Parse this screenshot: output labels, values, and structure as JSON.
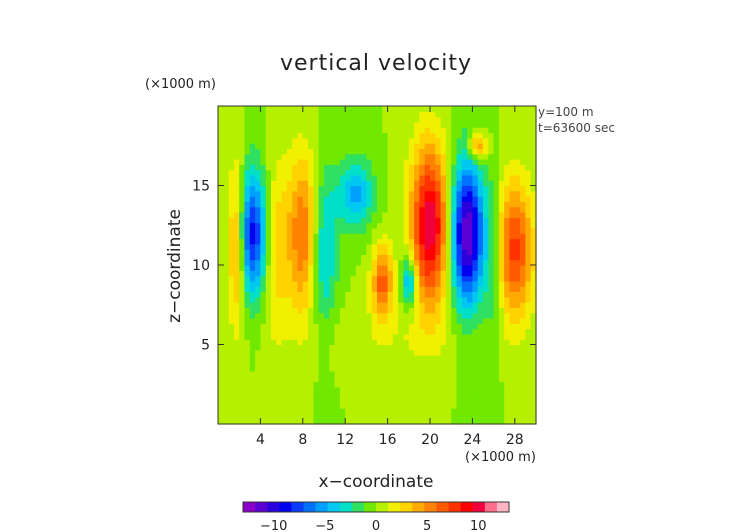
{
  "chart_data": {
    "type": "heatmap",
    "title": "vertical velocity",
    "xlabel": "x−coordinate",
    "ylabel": "z−coordinate",
    "x_units": "(×1000 m)",
    "y_units": "(×1000 m)",
    "annotations": [
      "y=100 m",
      "t=63600 sec"
    ],
    "xlim": [
      0,
      30
    ],
    "ylim": [
      0,
      20
    ],
    "xticks": [
      4,
      8,
      12,
      16,
      20,
      24,
      28
    ],
    "yticks": [
      5,
      10,
      15
    ],
    "colorbar": {
      "ticks": [
        -10,
        -5,
        0,
        5,
        10
      ],
      "tick_labels": [
        "−10",
        "−5",
        "0",
        "5",
        "10"
      ],
      "range": [
        -13,
        13
      ],
      "colors": [
        "#8a00c8",
        "#5a00d2",
        "#2a00dc",
        "#0000f0",
        "#0a3cff",
        "#0070ff",
        "#00a0ff",
        "#00c8f0",
        "#00e0c8",
        "#30e060",
        "#70e800",
        "#b4f000",
        "#f0f000",
        "#ffd200",
        "#ffaa00",
        "#ff8200",
        "#ff5a00",
        "#ff3200",
        "#ff0000",
        "#f0003c",
        "#ff6e8c",
        "#ffb4c3"
      ]
    },
    "features": [
      {
        "x": 3.2,
        "z": 12.0,
        "value": -9.0,
        "sx": 1.0,
        "sz": 2.8
      },
      {
        "x": 5.5,
        "z": 11.0,
        "value": 3.0,
        "sx": 0.9,
        "sz": 4.0
      },
      {
        "x": 1.8,
        "z": 11.5,
        "value": 6.0,
        "sx": 0.6,
        "sz": 3.5
      },
      {
        "x": 8.0,
        "z": 12.0,
        "value": 6.0,
        "sx": 1.0,
        "sz": 3.5
      },
      {
        "x": 10.0,
        "z": 11.0,
        "value": -4.0,
        "sx": 0.9,
        "sz": 3.5
      },
      {
        "x": 13.0,
        "z": 14.5,
        "value": -5.0,
        "sx": 1.2,
        "sz": 1.5
      },
      {
        "x": 15.5,
        "z": 9.0,
        "value": 6.5,
        "sx": 0.7,
        "sz": 1.6
      },
      {
        "x": 18.0,
        "z": 9.0,
        "value": -6.0,
        "sx": 0.5,
        "sz": 1.2
      },
      {
        "x": 20.0,
        "z": 12.5,
        "value": 10.5,
        "sx": 1.3,
        "sz": 3.5
      },
      {
        "x": 23.5,
        "z": 12.0,
        "value": -12.0,
        "sx": 1.1,
        "sz": 3.2
      },
      {
        "x": 28.0,
        "z": 11.0,
        "value": 7.5,
        "sx": 1.2,
        "sz": 3.0
      },
      {
        "x": 26.0,
        "z": 10.0,
        "value": -2.5,
        "sx": 0.6,
        "sz": 3.5
      },
      {
        "x": 24.5,
        "z": 17.5,
        "value": 6.0,
        "sx": 0.6,
        "sz": 0.6
      },
      {
        "x": 16.0,
        "z": 5.5,
        "value": 1.0,
        "sx": 6.0,
        "sz": 1.5
      }
    ]
  }
}
